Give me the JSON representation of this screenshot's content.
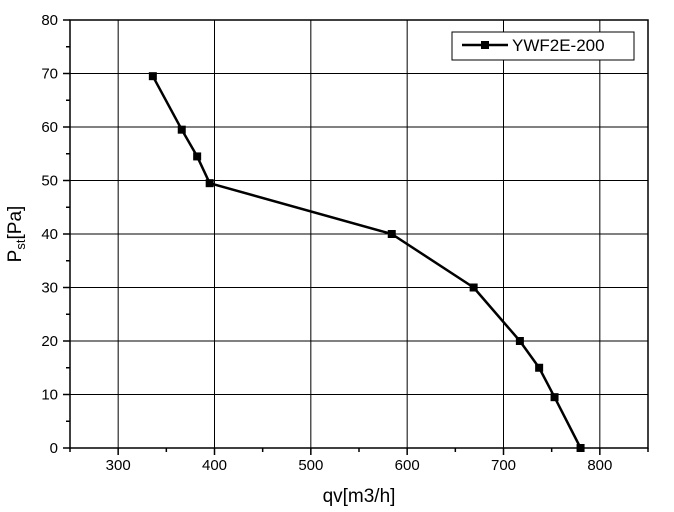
{
  "chart_data": {
    "type": "line",
    "title": "",
    "xlabel": "qv[m3/h]",
    "ylabel": {
      "main": "P",
      "sub": "st",
      "rest": "[Pa]"
    },
    "xlim": [
      250,
      850
    ],
    "ylim": [
      0,
      80
    ],
    "x_major_ticks": [
      300,
      400,
      500,
      600,
      700,
      800
    ],
    "x_minor_ticks": [
      250,
      350,
      450,
      550,
      650,
      750,
      850
    ],
    "y_major_ticks": [
      0,
      10,
      20,
      30,
      40,
      50,
      60,
      70,
      80
    ],
    "y_minor_ticks": [
      5,
      15,
      25,
      35,
      45,
      55,
      65,
      75
    ],
    "x_tick_labels": [
      "300",
      "400",
      "500",
      "600",
      "700",
      "800"
    ],
    "y_tick_labels": [
      "0",
      "10",
      "20",
      "30",
      "40",
      "50",
      "60",
      "70",
      "80"
    ],
    "grid": true,
    "legend_position": "top-right",
    "series": [
      {
        "name": "YWF2E-200",
        "color": "#000000",
        "marker": "square",
        "x": [
          336,
          366,
          382,
          395,
          584,
          669,
          717,
          737,
          753,
          780
        ],
        "y": [
          69.5,
          59.5,
          54.5,
          49.5,
          40,
          30,
          20,
          15,
          9.5,
          0
        ]
      }
    ]
  }
}
